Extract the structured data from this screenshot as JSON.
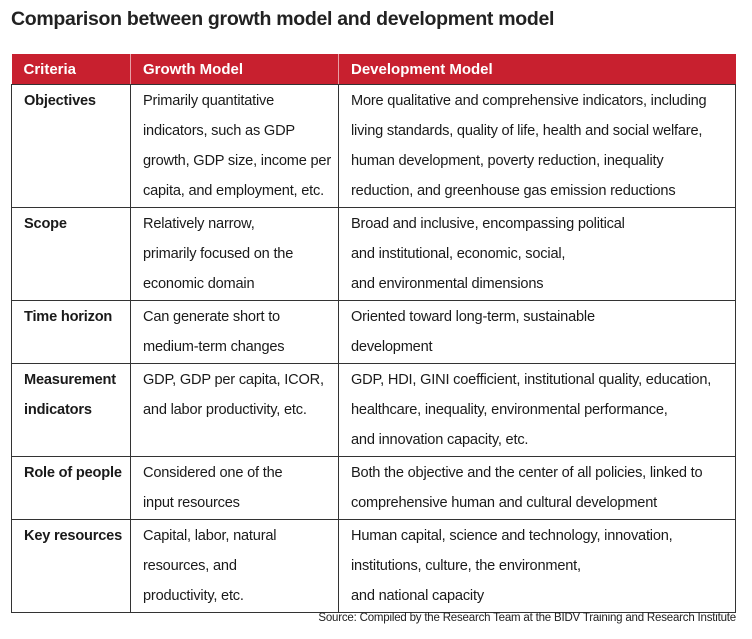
{
  "title": "Comparison between growth model and development model",
  "headers": [
    "Criteria",
    "Growth Model",
    "Development Model"
  ],
  "rows": [
    {
      "criteria": [
        "Objectives"
      ],
      "growth": [
        "Primarily quantitative",
        "indicators, such as GDP",
        "growth, GDP size, income per",
        "capita, and employment, etc."
      ],
      "development": [
        "More qualitative and comprehensive indicators, including",
        "living standards, quality of life, health and social welfare,",
        "human development, poverty reduction, inequality",
        "reduction, and greenhouse gas emission reductions"
      ]
    },
    {
      "criteria": [
        "Scope"
      ],
      "growth": [
        "Relatively narrow,",
        "primarily focused on the",
        "economic domain"
      ],
      "development": [
        "Broad and inclusive, encompassing political",
        "and institutional, economic, social,",
        "and environmental dimensions"
      ]
    },
    {
      "criteria": [
        "Time horizon"
      ],
      "growth": [
        "Can generate short to",
        "medium-term changes"
      ],
      "development": [
        "Oriented toward long-term, sustainable",
        "development"
      ]
    },
    {
      "criteria": [
        "Measurement",
        "indicators"
      ],
      "growth": [
        "GDP, GDP per capita, ICOR,",
        "and labor productivity, etc."
      ],
      "development": [
        "GDP, HDI, GINI coefficient, institutional quality, education,",
        "healthcare, inequality, environmental performance,",
        "and innovation capacity, etc."
      ]
    },
    {
      "criteria": [
        "Role of people"
      ],
      "growth": [
        "Considered one of the",
        "input resources"
      ],
      "development": [
        "Both the objective and the center of all policies, linked to",
        "comprehensive human and cultural development"
      ]
    },
    {
      "criteria": [
        "Key resources"
      ],
      "growth": [
        "Capital, labor, natural",
        "resources, and",
        "productivity, etc."
      ],
      "development": [
        "Human capital, science and technology, innovation,",
        "institutions, culture, the environment,",
        "and national capacity"
      ]
    }
  ],
  "source": "Source: Compiled by the Research Team at the BIDV Training and Research Institute",
  "colors": {
    "header_bg": "#c8202f",
    "header_text": "#ffffff",
    "border": "#333333"
  }
}
